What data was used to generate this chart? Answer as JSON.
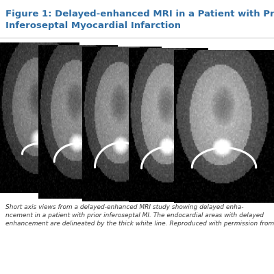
{
  "title_line1": "Figure 1: Delayed-enhanced MRI in a Patient with Prior",
  "title_line2": "Inferoseptal Myocardial Infarction",
  "title_color": "#2E6DA4",
  "title_fontsize": 9.5,
  "caption_lines": [
    "Short axis views from a delayed-enhanced MRI study showing delayed enha-",
    "ncement in a patient with prior inferoseptal MI. The endocardial areas with delayed enhancement",
    "are delineated by the thick white line. Reproduced with permission from Desjardins et al."
  ],
  "caption_fontsize": 6.5,
  "caption_color": "#3a3a3a",
  "bg_color": "#ffffff",
  "header_line_color": "#cccccc"
}
